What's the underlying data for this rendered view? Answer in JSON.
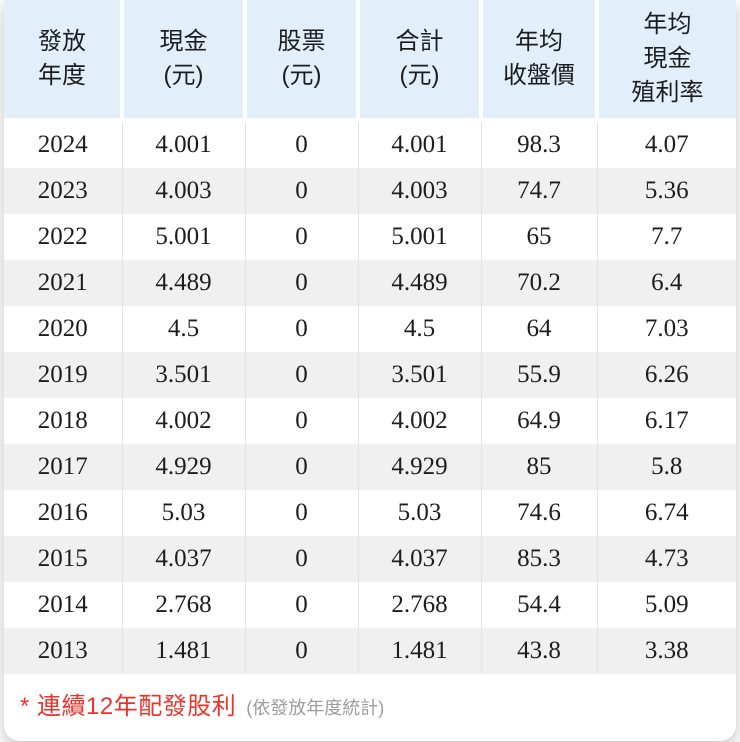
{
  "table": {
    "columns": [
      {
        "id": "year",
        "label": "發放\n年度"
      },
      {
        "id": "cash",
        "label": "現金\n(元)"
      },
      {
        "id": "stock",
        "label": "股票\n(元)"
      },
      {
        "id": "total",
        "label": "合計\n(元)"
      },
      {
        "id": "avg_close",
        "label": "年均\n收盤價"
      },
      {
        "id": "avg_yield",
        "label": "年均\n現金\n殖利率"
      }
    ],
    "rows": [
      {
        "year": "2024",
        "cash": "4.001",
        "stock": "0",
        "total": "4.001",
        "avg_close": "98.3",
        "avg_yield": "4.07"
      },
      {
        "year": "2023",
        "cash": "4.003",
        "stock": "0",
        "total": "4.003",
        "avg_close": "74.7",
        "avg_yield": "5.36"
      },
      {
        "year": "2022",
        "cash": "5.001",
        "stock": "0",
        "total": "5.001",
        "avg_close": "65",
        "avg_yield": "7.7"
      },
      {
        "year": "2021",
        "cash": "4.489",
        "stock": "0",
        "total": "4.489",
        "avg_close": "70.2",
        "avg_yield": "6.4"
      },
      {
        "year": "2020",
        "cash": "4.5",
        "stock": "0",
        "total": "4.5",
        "avg_close": "64",
        "avg_yield": "7.03"
      },
      {
        "year": "2019",
        "cash": "3.501",
        "stock": "0",
        "total": "3.501",
        "avg_close": "55.9",
        "avg_yield": "6.26"
      },
      {
        "year": "2018",
        "cash": "4.002",
        "stock": "0",
        "total": "4.002",
        "avg_close": "64.9",
        "avg_yield": "6.17"
      },
      {
        "year": "2017",
        "cash": "4.929",
        "stock": "0",
        "total": "4.929",
        "avg_close": "85",
        "avg_yield": "5.8"
      },
      {
        "year": "2016",
        "cash": "5.03",
        "stock": "0",
        "total": "5.03",
        "avg_close": "74.6",
        "avg_yield": "6.74"
      },
      {
        "year": "2015",
        "cash": "4.037",
        "stock": "0",
        "total": "4.037",
        "avg_close": "85.3",
        "avg_yield": "4.73"
      },
      {
        "year": "2014",
        "cash": "2.768",
        "stock": "0",
        "total": "2.768",
        "avg_close": "54.4",
        "avg_yield": "5.09"
      },
      {
        "year": "2013",
        "cash": "1.481",
        "stock": "0",
        "total": "1.481",
        "avg_close": "43.8",
        "avg_yield": "3.38"
      }
    ]
  },
  "footer": {
    "note_red": "* 連續12年配發股利",
    "note_gray": "(依發放年度統計)"
  },
  "colors": {
    "header_bg": "#e2effb",
    "row_alt_bg": "#f0f0f0",
    "row_bg": "#ffffff",
    "cell_divider": "#e3e3e3",
    "text": "#1d1d1f",
    "note_red": "#e8352b",
    "note_gray": "#9c9c9c"
  }
}
